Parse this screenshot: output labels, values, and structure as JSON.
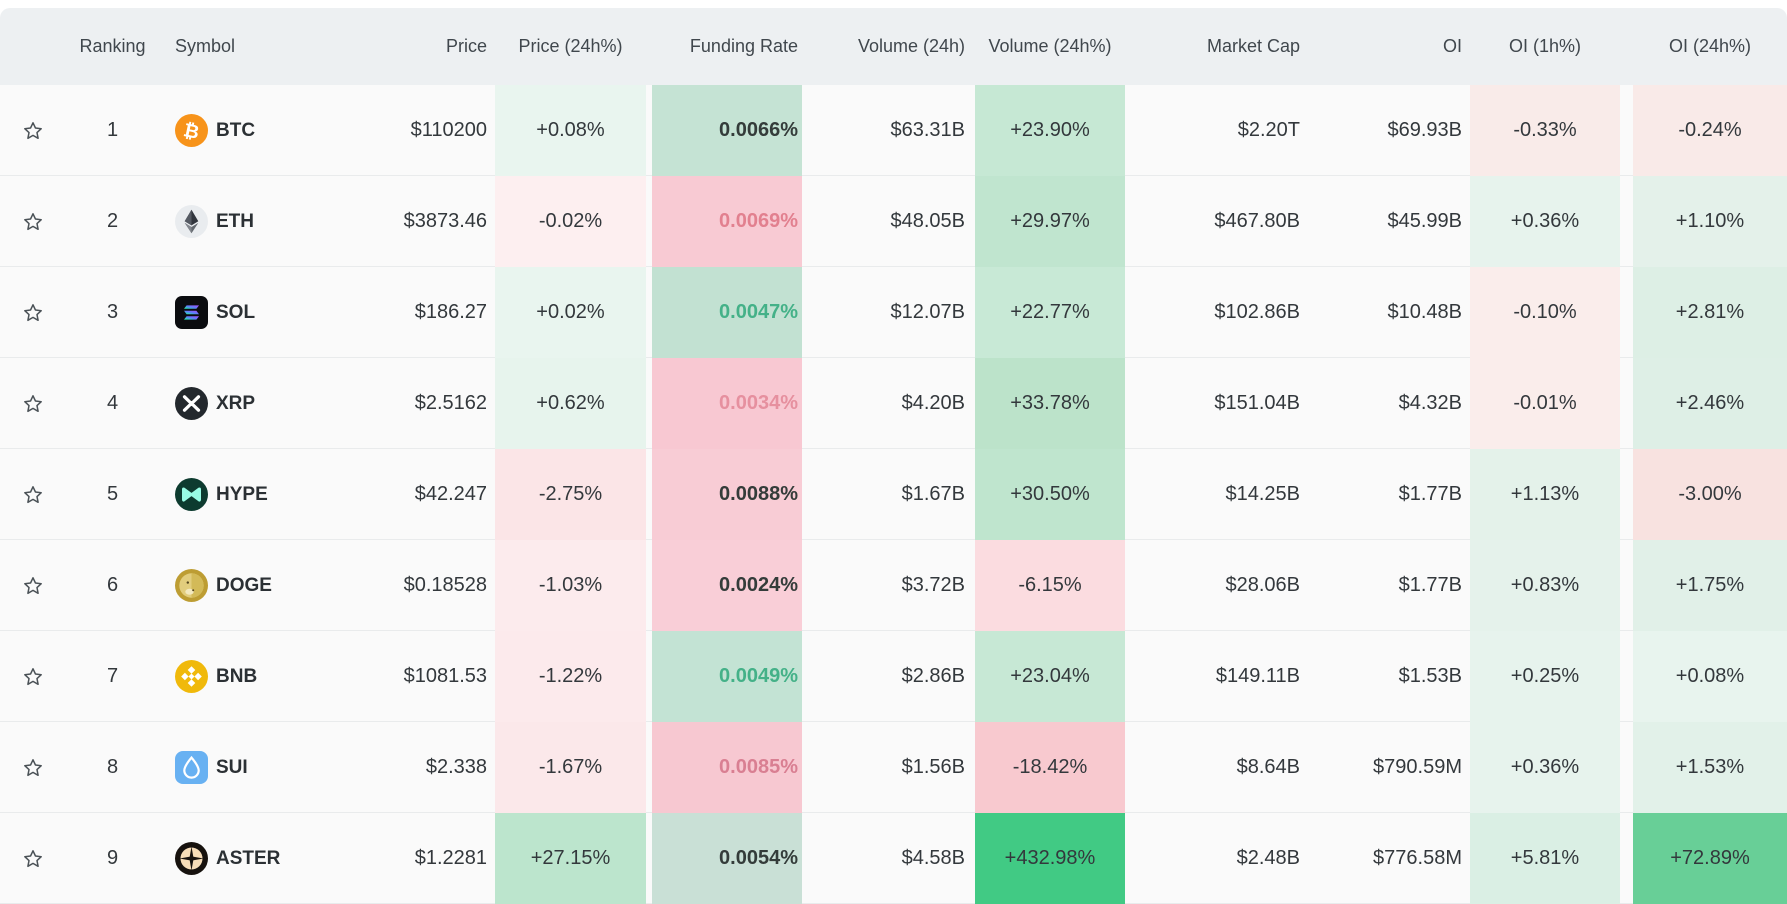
{
  "table": {
    "headers": {
      "ranking": "Ranking",
      "symbol": "Symbol",
      "price": "Price",
      "price_24h": "Price (24h%)",
      "funding": "Funding Rate",
      "volume": "Volume (24h)",
      "volume_24h": "Volume (24h%)",
      "market_cap": "Market Cap",
      "oi": "OI",
      "oi_1h": "OI (1h%)",
      "oi_24h": "OI (24h%)"
    },
    "rows": [
      {
        "ranking": "1",
        "symbol": "BTC",
        "icon": "btc",
        "price": "$110200",
        "price_24h": {
          "text": "+0.08%",
          "bg": "#e9f5ef"
        },
        "funding": {
          "text": "0.0066%",
          "bg": "#c5e3d4",
          "color": "#343c3a"
        },
        "volume": "$63.31B",
        "volume_24h": {
          "text": "+23.90%",
          "bg": "#c6e8d4"
        },
        "market_cap": "$2.20T",
        "oi": "$69.93B",
        "oi_1h": {
          "text": "-0.33%",
          "bg": "#f9ebe9"
        },
        "oi_24h": {
          "text": "-0.24%",
          "bg": "#f9eae8"
        }
      },
      {
        "ranking": "2",
        "symbol": "ETH",
        "icon": "eth",
        "price": "$3873.46",
        "price_24h": {
          "text": "-0.02%",
          "bg": "#fdeff0"
        },
        "funding": {
          "text": "0.0069%",
          "bg": "#f8cad3",
          "color": "#e2808f"
        },
        "volume": "$48.05B",
        "volume_24h": {
          "text": "+29.97%",
          "bg": "#c0e5cf"
        },
        "market_cap": "$467.80B",
        "oi": "$45.99B",
        "oi_1h": {
          "text": "+0.36%",
          "bg": "#e7f3ed"
        },
        "oi_24h": {
          "text": "+1.10%",
          "bg": "#e4f1ea"
        }
      },
      {
        "ranking": "3",
        "symbol": "SOL",
        "icon": "sol",
        "price": "$186.27",
        "price_24h": {
          "text": "+0.02%",
          "bg": "#e9f5ef"
        },
        "funding": {
          "text": "0.0047%",
          "bg": "#c2e1d2",
          "color": "#44b188"
        },
        "volume": "$12.07B",
        "volume_24h": {
          "text": "+22.77%",
          "bg": "#c8e9d6"
        },
        "market_cap": "$102.86B",
        "oi": "$10.48B",
        "oi_1h": {
          "text": "-0.10%",
          "bg": "#faedeb"
        },
        "oi_24h": {
          "text": "+2.81%",
          "bg": "#ddefe5"
        }
      },
      {
        "ranking": "4",
        "symbol": "XRP",
        "icon": "xrp",
        "price": "$2.5162",
        "price_24h": {
          "text": "+0.62%",
          "bg": "#e7f4ed"
        },
        "funding": {
          "text": "0.0034%",
          "bg": "#f8c8d2",
          "color": "#e6909f"
        },
        "volume": "$4.20B",
        "volume_24h": {
          "text": "+33.78%",
          "bg": "#bce3ca"
        },
        "market_cap": "$151.04B",
        "oi": "$4.32B",
        "oi_1h": {
          "text": "-0.01%",
          "bg": "#faedeb"
        },
        "oi_24h": {
          "text": "+2.46%",
          "bg": "#deefe6"
        }
      },
      {
        "ranking": "5",
        "symbol": "HYPE",
        "icon": "hype",
        "price": "$42.247",
        "price_24h": {
          "text": "-2.75%",
          "bg": "#fbe5e7"
        },
        "funding": {
          "text": "0.0088%",
          "bg": "#f8ccd5",
          "color": "#343c3a"
        },
        "volume": "$1.67B",
        "volume_24h": {
          "text": "+30.50%",
          "bg": "#bfe5ce"
        },
        "market_cap": "$14.25B",
        "oi": "$1.77B",
        "oi_1h": {
          "text": "+1.13%",
          "bg": "#e4f2ea"
        },
        "oi_24h": {
          "text": "-3.00%",
          "bg": "#f8e2e0"
        }
      },
      {
        "ranking": "6",
        "symbol": "DOGE",
        "icon": "doge",
        "price": "$0.18528",
        "price_24h": {
          "text": "-1.03%",
          "bg": "#fcebed"
        },
        "funding": {
          "text": "0.0024%",
          "bg": "#f9ced7",
          "color": "#343c3a"
        },
        "volume": "$3.72B",
        "volume_24h": {
          "text": "-6.15%",
          "bg": "#fbdce0"
        },
        "market_cap": "$28.06B",
        "oi": "$1.77B",
        "oi_1h": {
          "text": "+0.83%",
          "bg": "#e5f2eb"
        },
        "oi_24h": {
          "text": "+1.75%",
          "bg": "#e1f0e8"
        }
      },
      {
        "ranking": "7",
        "symbol": "BNB",
        "icon": "bnb",
        "price": "$1081.53",
        "price_24h": {
          "text": "-1.22%",
          "bg": "#fceaec"
        },
        "funding": {
          "text": "0.0049%",
          "bg": "#c3e3d4",
          "color": "#44b188"
        },
        "volume": "$2.86B",
        "volume_24h": {
          "text": "+23.04%",
          "bg": "#c7e8d5"
        },
        "market_cap": "$149.11B",
        "oi": "$1.53B",
        "oi_1h": {
          "text": "+0.25%",
          "bg": "#e7f3ed"
        },
        "oi_24h": {
          "text": "+0.08%",
          "bg": "#e8f4ee"
        }
      },
      {
        "ranking": "8",
        "symbol": "SUI",
        "icon": "sui",
        "price": "$2.338",
        "price_24h": {
          "text": "-1.67%",
          "bg": "#fbe8ea"
        },
        "funding": {
          "text": "0.0085%",
          "bg": "#f7c8d1",
          "color": "#d97f92"
        },
        "volume": "$1.56B",
        "volume_24h": {
          "text": "-18.42%",
          "bg": "#f8c9cf"
        },
        "market_cap": "$8.64B",
        "oi": "$790.59M",
        "oi_1h": {
          "text": "+0.36%",
          "bg": "#e7f3ed"
        },
        "oi_24h": {
          "text": "+1.53%",
          "bg": "#e2f1e9"
        }
      },
      {
        "ranking": "9",
        "symbol": "ASTER",
        "icon": "aster",
        "price": "$1.2281",
        "price_24h": {
          "text": "+27.15%",
          "bg": "#bce5cd"
        },
        "funding": {
          "text": "0.0054%",
          "bg": "#c9e0d6",
          "color": "#343c3a"
        },
        "volume": "$4.58B",
        "volume_24h": {
          "text": "+432.98%",
          "bg": "#41ca84"
        },
        "market_cap": "$2.48B",
        "oi": "$776.58M",
        "oi_1h": {
          "text": "+5.81%",
          "bg": "#daefe4"
        },
        "oi_24h": {
          "text": "+72.89%",
          "bg": "#68cf97"
        }
      }
    ]
  },
  "colors": {
    "header_bg": "#edf0f2",
    "row_bg": "#fafafa",
    "separator": "#e9ebec",
    "positive_strong": "#41ca84",
    "funding_green_text": "#44b188",
    "funding_red_text": "#e2808f"
  }
}
